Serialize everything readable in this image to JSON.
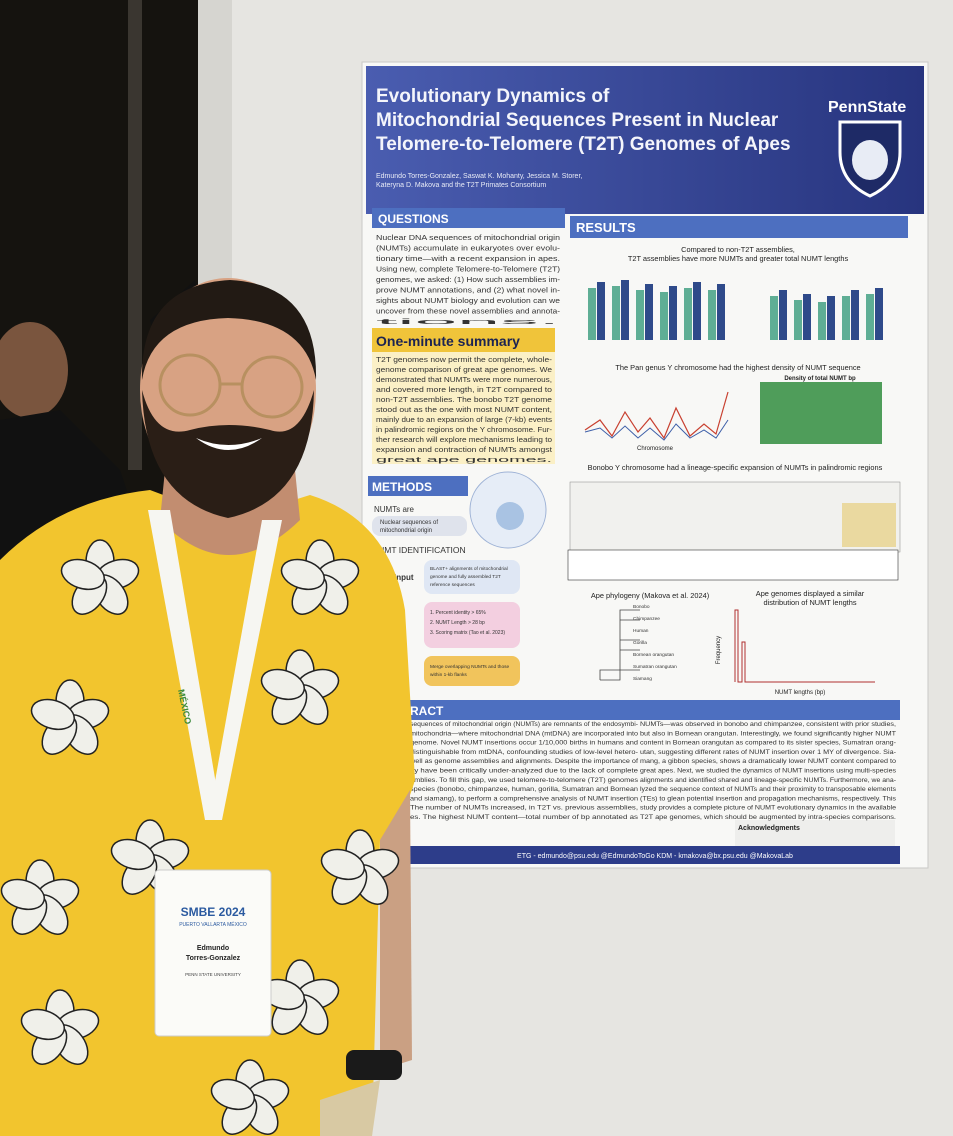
{
  "poster": {
    "title": [
      "Evolutionary Dynamics of",
      "Mitochondrial Sequences Present in Nuclear",
      "Telomere-to-Telomere (T2T) Genomes of Apes"
    ],
    "logo": "PennState",
    "authors": [
      "Edmundo Torres-Gonzalez, Saswat K. Mohanty, Jessica M. Storer,",
      "Kateryna D. Makova and the T2T Primates Consortium"
    ],
    "sections": {
      "questions": "QUESTIONS",
      "results": "RESULTS",
      "summary": "One-minute summary",
      "methods": "METHODS",
      "abstract": "RACT"
    },
    "questions_text": [
      "Nuclear DNA sequences of mitochondrial origin",
      "(NUMTs) accumulate in eukaryotes over evolu-",
      "tionary time—with a recent expansion in apes.",
      "Using new, complete Telomere-to-Telomere (T2T)",
      "genomes, we asked: (1) How such assemblies im-",
      "prove NUMT annotations, and (2) what novel in-",
      "sights about NUMT biology and evolution can we",
      "uncover from these novel assemblies and annota-",
      "tions."
    ],
    "summary_text": [
      "T2T genomes now permit the complete, whole-",
      "genome comparison of great ape genomes. We",
      "demonstrated that NUMTs were more numerous,",
      "and covered more length, in T2T compared to",
      "non-T2T assemblies. The bonobo T2T genome",
      "stood out as the one with most NUMT content,",
      "mainly due to an expansion of large (7-kb) events",
      "in palindromic regions on the Y chromosome. Fur-",
      "ther research will explore mechanisms leading to",
      "expansion and contraction of NUMTs amongst",
      "great ape genomes."
    ],
    "methods": {
      "numts_are": "NUMTs are",
      "numts_def": [
        "Nuclear sequences of",
        "mitochondrial origin"
      ],
      "identification": "NUMT IDENTIFICATION",
      "input": "Input",
      "input_box": [
        "BLAST+ alignments of mitochondrial",
        "genome and fully assembled T2T",
        "reference sequences"
      ],
      "steps": [
        "1. Percent identity > 65%",
        "2. NUMT Length > 28 bp",
        "3. Scoring matrix (Tao et al. 2023)"
      ],
      "merge": [
        "Merge overlapping NUMTs and those",
        "within 1-kb flanks"
      ]
    },
    "results": {
      "chart1_title": [
        "Compared to non-T2T assemblies,",
        "T2T assemblies have more NUMTs and greater total NUMT lengths"
      ],
      "chart2_title": "The Pan genus Y chromosome had the highest density of NUMT sequence",
      "density": "Density of total NUMT bp",
      "chromosome": "Chromosome",
      "chart3_title": "Bonobo Y chromosome had a lineage-specific expansion of NUMTs in palindromic regions",
      "phylogeny_title": "Ape phylogeny (Makova et al. 2024)",
      "species": [
        "Bonobo",
        "Chimpanzee",
        "Human",
        "Gorilla",
        "Bornean orangutan",
        "Sumatran orangutan",
        "Siamang"
      ],
      "lengths_title": [
        "Ape genomes displayed a similar",
        "distribution of NUMT lengths"
      ],
      "x_label": "NUMT lengths (bp)",
      "y_label": "Frequency"
    },
    "abstract_left": [
      "sequences of mitochondrial origin (NUMTs) are remnants of the endosymbi-",
      "mitochondria—where mitochondrial DNA (mtDNA) are incorporated into",
      "genome. Novel NUMT insertions occur 1/10,000 births in humans and",
      "distinguishable from mtDNA, confounding studies of low-level hetero-",
      "well as genome assemblies and alignments. Despite the importance of",
      "ey have been critically under-analyzed due to the lack of complete",
      "emblies. To fill this gap, we used telomere-to-telomere (T2T) genomes",
      "species (bonobo, chimpanzee, human, gorilla, Sumatran and Bornean",
      "and siamang), to perform a comprehensive analysis of NUMT insertion",
      "The number of NUMTs increased, in T2T vs. previous assemblies,",
      "es. The highest NUMT content—total number of bp annotated as"
    ],
    "abstract_right": [
      "NUMTs—was observed in bonobo and chimpanzee, consistent with prior studies,",
      "but also in Bornean orangutan. Interestingly, we found significantly higher NUMT",
      "content in Bornean orangutan as compared to its sister species, Sumatran orang-",
      "utan, suggesting different rates of NUMT insertion over 1 MY of divergence. Sia-",
      "mang, a gibbon species, shows a dramatically lower NUMT content compared to",
      "great apes. Next, we studied the dynamics of NUMT insertions using multi-species",
      "alignments and identified shared and lineage-specific NUMTs. Furthermore, we ana-",
      "lyzed the sequence context of NUMTs and their proximity to transposable elements",
      "(TEs) to glean potential insertion and propagation mechanisms, respectively. This",
      "study provides a complete picture of NUMT evolutionary dynamics in the available",
      "T2T ape genomes, which should be augmented by intra-species comparisons."
    ],
    "acknowledgments": "Acknowledgments",
    "footer": "ETG - edmundo@psu.edu   @EdmundoToGo   KDM - kmakova@bx.psu.edu   @MakovaLab"
  },
  "badge": {
    "event": "SMBE 2024",
    "place": "PUERTO VALLARTA MÉXICO",
    "name": [
      "Edmundo",
      "Torres-Gonzalez"
    ],
    "affiliation": "PENN STATE UNIVERSITY"
  },
  "lanyard": "MÉXICO"
}
